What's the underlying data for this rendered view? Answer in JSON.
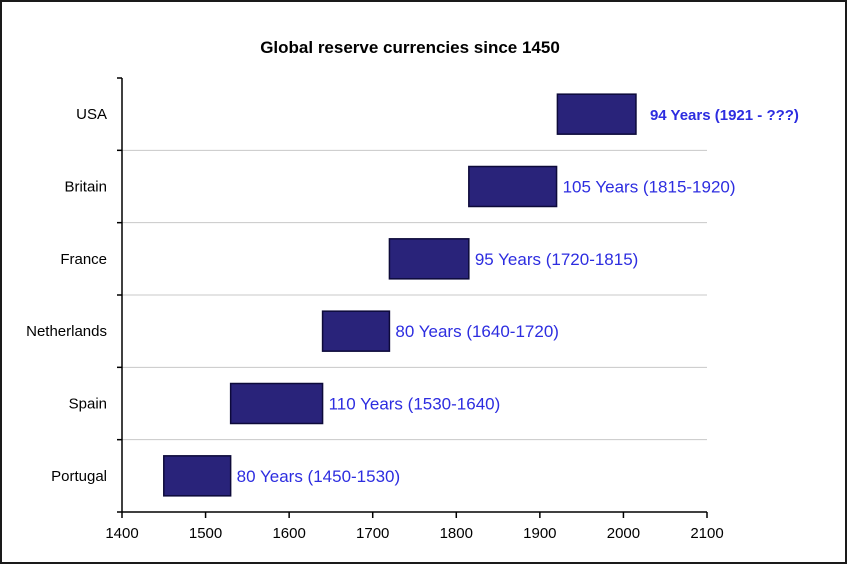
{
  "chart_data": {
    "type": "bar",
    "orientation": "horizontal-range",
    "title": "Global reserve currencies since 1450",
    "xlabel": "",
    "ylabel": "",
    "xlim": [
      1400,
      2100
    ],
    "xticks": [
      1400,
      1500,
      1600,
      1700,
      1800,
      1900,
      2000,
      2100
    ],
    "grid": "horizontal",
    "legend": "none",
    "colors": {
      "bar": "#29237a",
      "bar_border": "#0d0a3a",
      "label": "#2d2de0",
      "grid": "#c8c8c8"
    },
    "categories": [
      "USA",
      "Britain",
      "France",
      "Netherlands",
      "Spain",
      "Portugal"
    ],
    "series": [
      {
        "start": [
          1921,
          1815,
          1720,
          1640,
          1530,
          1450
        ],
        "end": [
          2015,
          1920,
          1815,
          1720,
          1640,
          1530
        ],
        "labels": [
          "94 Years (1921 - ???)",
          "105 Years (1815-1920)",
          "95 Years (1720-1815)",
          "80 Years (1640-1720)",
          "110 Years (1530-1640)",
          "80 Years (1450-1530)"
        ]
      }
    ]
  }
}
